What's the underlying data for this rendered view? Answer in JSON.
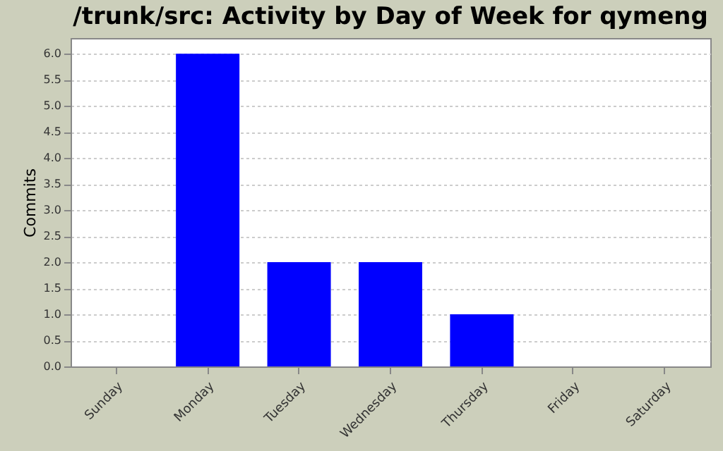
{
  "chart_data": {
    "type": "bar",
    "title": "/trunk/src: Activity by Day of Week for qymeng",
    "ylabel": "Commits",
    "categories": [
      "Sunday",
      "Monday",
      "Tuesday",
      "Wednesday",
      "Thursday",
      "Friday",
      "Saturday"
    ],
    "values": [
      0,
      6,
      2,
      2,
      1,
      0,
      0
    ],
    "color": "#0000ff",
    "ylim": [
      0,
      6.3
    ],
    "yticks": [
      {
        "value": 0,
        "label": "0.0"
      },
      {
        "value": 0.5,
        "label": "0.5"
      },
      {
        "value": 1,
        "label": "1.0"
      },
      {
        "value": 1.5,
        "label": "1.5"
      },
      {
        "value": 2,
        "label": "2.0"
      },
      {
        "value": 2.5,
        "label": "2.5"
      },
      {
        "value": 3,
        "label": "3.0"
      },
      {
        "value": 3.5,
        "label": "3.5"
      },
      {
        "value": 4,
        "label": "4.0"
      },
      {
        "value": 4.5,
        "label": "4.5"
      },
      {
        "value": 5,
        "label": "5.0"
      },
      {
        "value": 5.5,
        "label": "5.5"
      },
      {
        "value": 6,
        "label": "6.0"
      }
    ],
    "grid": "y",
    "legend": false
  }
}
